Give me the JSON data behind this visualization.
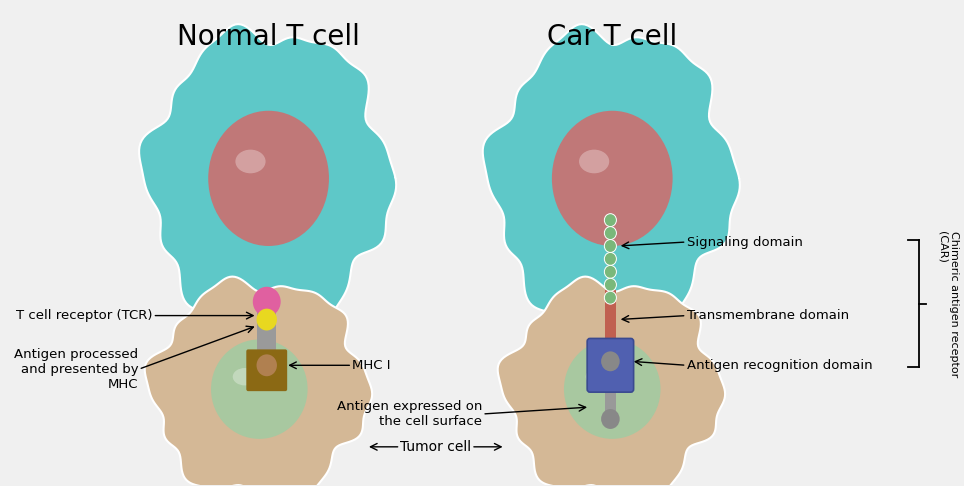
{
  "background_color": "#f0f0f0",
  "title_normal": "Normal T cell",
  "title_car": "Car T cell",
  "title_fontsize": 20,
  "label_fontsize": 9.5,
  "tcell_color": "#5ec8c8",
  "tcell_nucleus_color": "#c07878",
  "tumor_color": "#d4b896",
  "tumor_nucleus_color": "#a8c8a0",
  "receptor_gray": "#9a9a9a",
  "receptor_pink": "#e060a0",
  "receptor_yellow": "#e8d820",
  "receptor_brown": "#8B6914",
  "car_signaling_color": "#70b070",
  "car_transmembrane_color": "#c06050",
  "car_recognition_color": "#4a5aaa",
  "tumor_label": "Tumor cell",
  "car_bracket_label": "Chimeric antigen receptor\n(CAR)"
}
